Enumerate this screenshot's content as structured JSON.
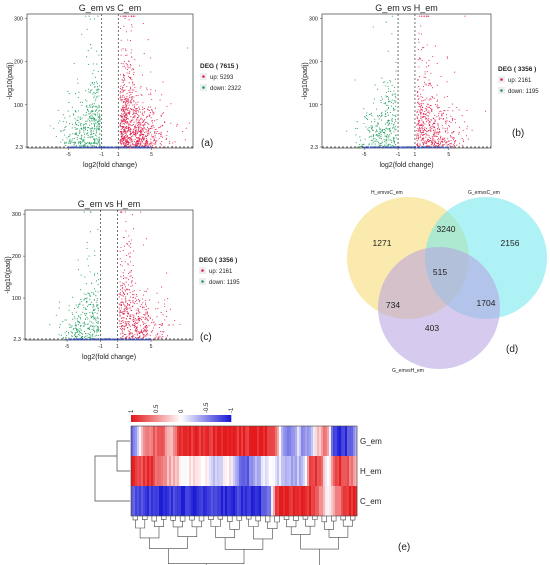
{
  "chart_data": [
    {
      "id": "a",
      "type": "scatter",
      "panel_label": "(a)",
      "title": "G_em  vs  C_em",
      "xlabel": "log2(fold change)",
      "ylabel": "-log10(padj)",
      "x_ticks": [
        "-5",
        "-1",
        "1",
        "5"
      ],
      "y_ticks": [
        "2.3",
        "100",
        "200",
        "300"
      ],
      "ylim": [
        0,
        310
      ],
      "xlim": [
        -10,
        10
      ],
      "threshold_y": "2.3",
      "threshold_x": [
        -1,
        1
      ],
      "legend_title": "DEG ( 7615 )",
      "legend_placement": "right",
      "series": [
        {
          "name": "up: 5293",
          "color": "#e0204a"
        },
        {
          "name": "down: 2322",
          "color": "#1a9c5a"
        }
      ]
    },
    {
      "id": "b",
      "type": "scatter",
      "panel_label": "(b)",
      "title": "G_em  vs  H_em",
      "xlabel": "log2(fold change)",
      "ylabel": "-log10(padj)",
      "x_ticks": [
        "-5",
        "-1",
        "1",
        "5"
      ],
      "y_ticks": [
        "2.3",
        "100",
        "200",
        "300"
      ],
      "ylim": [
        0,
        310
      ],
      "xlim": [
        -10,
        10
      ],
      "threshold_y": "2.3",
      "threshold_x": [
        -1,
        1
      ],
      "legend_title": "DEG ( 3356 )",
      "legend_placement": "right",
      "series": [
        {
          "name": "up: 2161",
          "color": "#e0204a"
        },
        {
          "name": "down: 1195",
          "color": "#1a9c5a"
        }
      ]
    },
    {
      "id": "c",
      "type": "scatter",
      "panel_label": "(c)",
      "title": "G_em  vs  H_em",
      "xlabel": "log2(fold change)",
      "ylabel": "-log10(padj)",
      "x_ticks": [
        "-5",
        "-1",
        "1",
        "5"
      ],
      "y_ticks": [
        "2.3",
        "100",
        "200",
        "300"
      ],
      "ylim": [
        0,
        310
      ],
      "xlim": [
        -10,
        10
      ],
      "threshold_y": "2.3",
      "threshold_x": [
        -1,
        1
      ],
      "legend_title": "DEG ( 3356 )",
      "legend_placement": "right",
      "series": [
        {
          "name": "up: 2161",
          "color": "#e0204a"
        },
        {
          "name": "down: 1195",
          "color": "#1a9c5a"
        }
      ]
    },
    {
      "id": "d",
      "type": "venn",
      "panel_label": "(d)",
      "sets": [
        {
          "name": "H_emvsC_em",
          "color": "#f5d96a"
        },
        {
          "name": "G_emvsC_em",
          "color": "#6ee8ef"
        },
        {
          "name": "G_emvsH_em",
          "color": "#b79fe2"
        }
      ],
      "regions": [
        {
          "sets": [
            "H_emvsC_em"
          ],
          "value": 1271
        },
        {
          "sets": [
            "H_emvsC_em",
            "G_emvsC_em"
          ],
          "value": 3240
        },
        {
          "sets": [
            "G_emvsC_em"
          ],
          "value": 2156
        },
        {
          "sets": [
            "H_emvsC_em",
            "G_emvsC_em",
            "G_emvsH_em"
          ],
          "value": 515
        },
        {
          "sets": [
            "H_emvsC_em",
            "G_emvsH_em"
          ],
          "value": 734
        },
        {
          "sets": [
            "G_emvsC_em",
            "G_emvsH_em"
          ],
          "value": 1704
        },
        {
          "sets": [
            "G_emvsH_em"
          ],
          "value": 403
        }
      ]
    },
    {
      "id": "e",
      "type": "heatmap",
      "panel_label": "(e)",
      "rows": [
        "G_em",
        "H_em",
        "C_em"
      ],
      "color_scale": {
        "values": [
          "1",
          "0.5",
          "0",
          "-0.5",
          "-1"
        ],
        "high": "#e41a1c",
        "mid": "#ffffff",
        "low": "#1c1cd6"
      },
      "row_pattern": [
        [
          -0.6,
          -0.3,
          0.4,
          0.6,
          0.7,
          0.7,
          0.5,
          0.3,
          0.9,
          0.95,
          0.95,
          0.9,
          0.9,
          0.85,
          0.9,
          0.95,
          1.0,
          1.0,
          0.95,
          0.9,
          0.9,
          0.95,
          1.0,
          1.0,
          0.9,
          0.6,
          -0.2,
          -0.5,
          -0.4,
          -0.2,
          -0.6,
          -0.3,
          0.1,
          0.4,
          0.7,
          -0.8,
          -0.9,
          -0.9,
          -0.7,
          -0.3
        ],
        [
          0.95,
          0.9,
          0.8,
          0.95,
          0.7,
          0.5,
          0.4,
          0.3,
          0.2,
          0.0,
          0.1,
          0.2,
          0.1,
          0.0,
          -0.2,
          -0.3,
          0.0,
          0.2,
          -0.4,
          -0.6,
          -0.7,
          -0.5,
          -0.3,
          -0.1,
          0.0,
          -0.1,
          -0.2,
          -0.3,
          -0.4,
          -0.3,
          -0.2,
          0.8,
          0.9,
          0.6,
          -0.2,
          0.7,
          0.9,
          0.8,
          0.6,
          0.4
        ],
        [
          -0.7,
          -0.8,
          -0.85,
          -0.9,
          -0.95,
          -0.95,
          -0.9,
          -0.85,
          -0.95,
          -0.95,
          -0.9,
          -0.95,
          -0.95,
          -0.9,
          -0.85,
          -0.9,
          -0.95,
          -0.95,
          -0.9,
          -0.85,
          -0.9,
          -0.95,
          -0.9,
          -0.8,
          -0.6,
          0.9,
          0.95,
          0.95,
          0.95,
          0.9,
          0.95,
          0.9,
          0.7,
          0.4,
          0.0,
          0.3,
          0.6,
          0.9,
          0.95,
          0.9
        ]
      ]
    }
  ]
}
